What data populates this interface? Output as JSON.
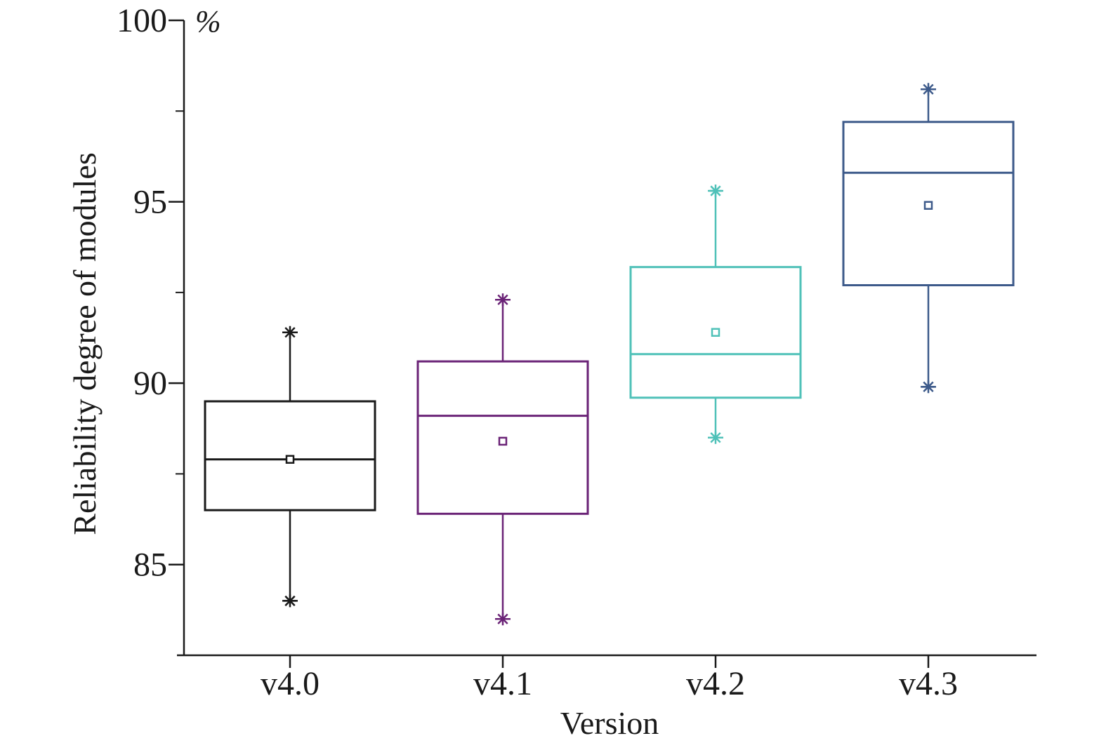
{
  "chart_data": {
    "type": "box",
    "xlabel": "Version",
    "ylabel": "Reliability degree of modules",
    "y_unit": "%",
    "ylim": [
      82.5,
      100
    ],
    "y_major_ticks": [
      85,
      90,
      95,
      100
    ],
    "y_minor_ticks": [
      87.5,
      92.5,
      97.5
    ],
    "grid": false,
    "legend": "none",
    "categories": [
      "v4.0",
      "v4.1",
      "v4.2",
      "v4.3"
    ],
    "boxes": [
      {
        "category": "v4.0",
        "color": "#1a1a1a",
        "whisker_low": 84.0,
        "q1": 86.5,
        "median": 87.9,
        "mean": 87.9,
        "q3": 89.5,
        "whisker_high": 91.4
      },
      {
        "category": "v4.1",
        "color": "#6a2276",
        "whisker_low": 83.5,
        "q1": 86.4,
        "median": 89.1,
        "mean": 88.4,
        "q3": 90.6,
        "whisker_high": 92.3
      },
      {
        "category": "v4.2",
        "color": "#4fc1b8",
        "whisker_low": 88.5,
        "q1": 89.6,
        "median": 90.8,
        "mean": 91.4,
        "q3": 93.2,
        "whisker_high": 95.3
      },
      {
        "category": "v4.3",
        "color": "#3d5a8a",
        "whisker_low": 89.9,
        "q1": 92.7,
        "median": 95.8,
        "mean": 94.9,
        "q3": 97.2,
        "whisker_high": 98.1
      }
    ]
  }
}
